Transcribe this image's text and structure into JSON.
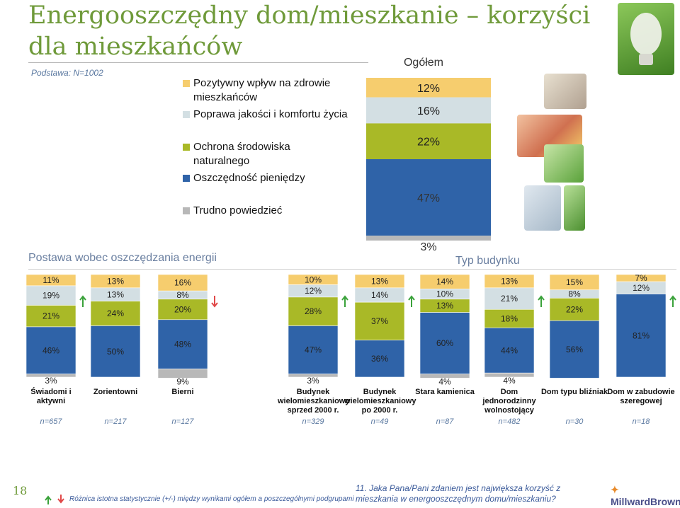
{
  "page": {
    "title": "Energooszczędny dom/mieszkanie – korzyści dla mieszkańców",
    "subtitle": "Podstawa: N=1002",
    "page_number": "18",
    "footnote": "Różnica istotna statystycznie (+/-) między wynikami ogółem a poszczególnymi podgrupami",
    "question": "11. Jaka Pana/Pani zdaniem jest największa korzyść z mieszkania w energooszczędnym domu/mieszkaniu?",
    "logo_text": "MillwardBrown",
    "section_attitude": "Postawa wobec oszczędzania energii",
    "section_building": "Typ budynku"
  },
  "legend": [
    {
      "label": "Pozytywny wpływ na zdrowie mieszkańców",
      "color": "#f6cd6e"
    },
    {
      "label": "Poprawa jakości i komfortu życia",
      "color": "#d3dfe3"
    },
    {
      "label": "Ochrona środowiska naturalnego",
      "color": "#a9b927"
    },
    {
      "label": "Oszczędność pieniędzy",
      "color": "#2f63a8"
    },
    {
      "label": "Trudno powiedzieć",
      "color": "#b8b8b8"
    }
  ],
  "chart_data": [
    {
      "type": "bar",
      "title": "Ogółem",
      "stacked": true,
      "series": [
        {
          "name": "Pozytywny wpływ na zdrowie mieszkańców",
          "values": [
            12
          ]
        },
        {
          "name": "Poprawa jakości i komfortu życia",
          "values": [
            16
          ]
        },
        {
          "name": "Ochrona środowiska naturalnego",
          "values": [
            22
          ]
        },
        {
          "name": "Oszczędność pieniędzy",
          "values": [
            47
          ]
        },
        {
          "name": "Trudno powiedzieć",
          "values": [
            3
          ]
        }
      ]
    },
    {
      "type": "bar",
      "stacked": true,
      "categories": [
        "Świadomi i aktywni",
        "Zorientowni",
        "Bierni",
        "Budynek wielomieszkaniowy sprzed 2000 r.",
        "Budynek wielomieszkaniowy po 2000 r.",
        "Stara kamienica",
        "Dom jednorodzinny wolnostojący",
        "Dom typu bliźniak",
        "Dom w zabudowie szeregowej"
      ],
      "n": [
        "n=657",
        "n=217",
        "n=127",
        "n=329",
        "n=49",
        "n=87",
        "n=482",
        "n=30",
        "n=18"
      ],
      "series": [
        {
          "name": "Pozytywny wpływ na zdrowie mieszkańców",
          "values": [
            11,
            13,
            16,
            10,
            13,
            14,
            13,
            15,
            7
          ]
        },
        {
          "name": "Poprawa jakości i komfortu życia",
          "values": [
            19,
            13,
            8,
            12,
            14,
            10,
            21,
            8,
            12
          ]
        },
        {
          "name": "Ochrona środowiska naturalnego",
          "values": [
            21,
            24,
            20,
            28,
            37,
            13,
            18,
            22,
            0
          ]
        },
        {
          "name": "Oszczędność pieniędzy",
          "values": [
            46,
            50,
            48,
            47,
            36,
            60,
            44,
            56,
            81
          ]
        },
        {
          "name": "Trudno powiedzieć",
          "values": [
            3,
            0,
            9,
            3,
            0,
            4,
            4,
            0,
            0
          ]
        }
      ],
      "significance": [
        {
          "category": "Świadomi i aktywni",
          "direction": "up"
        },
        {
          "category": "Bierni",
          "direction": "down"
        },
        {
          "category": "Budynek wielomieszkaniowy sprzed 2000 r.",
          "direction": "up"
        },
        {
          "category": "Budynek wielomieszkaniowy po 2000 r.",
          "direction": "up"
        },
        {
          "category": "Dom jednorodzinny wolnostojący",
          "direction": "up"
        },
        {
          "category": "Dom w zabudowie szeregowej",
          "direction": "up"
        }
      ]
    }
  ]
}
